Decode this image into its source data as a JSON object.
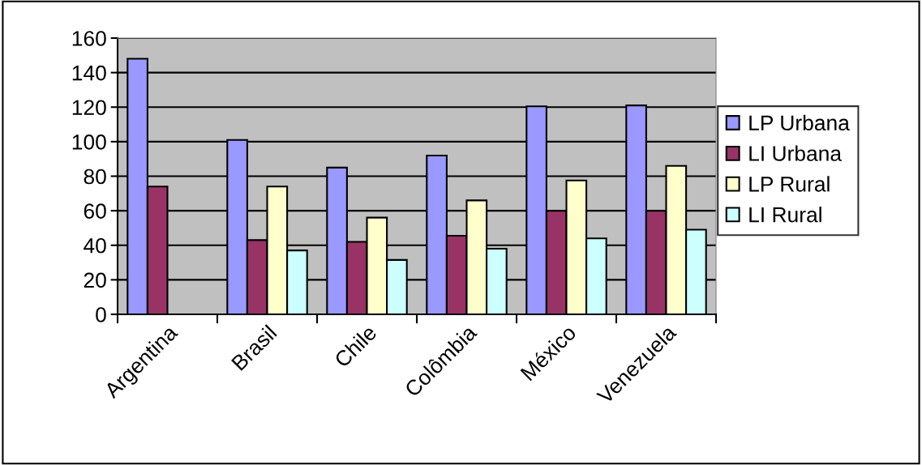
{
  "chart_data": {
    "type": "bar",
    "categories": [
      "Argentina",
      "Brasil",
      "Chile",
      "Colômbia",
      "México",
      "Venezuela"
    ],
    "series": [
      {
        "name": "LP Urbana",
        "color": "#9999ff",
        "values": [
          148,
          101,
          85,
          92,
          120.5,
          121
        ]
      },
      {
        "name": "LI Urbana",
        "color": "#993366",
        "values": [
          74,
          43,
          42,
          45.5,
          60,
          60
        ]
      },
      {
        "name": "LP Rural",
        "color": "#ffffcc",
        "values": [
          null,
          74,
          56,
          66,
          77.5,
          86
        ]
      },
      {
        "name": "LI Rural",
        "color": "#ccffff",
        "values": [
          null,
          37,
          31.5,
          38,
          44,
          49
        ]
      }
    ],
    "ylim": [
      0,
      160
    ],
    "yticks": [
      0,
      20,
      40,
      60,
      80,
      100,
      120,
      140,
      160
    ],
    "grid": "y",
    "legend": "right"
  }
}
